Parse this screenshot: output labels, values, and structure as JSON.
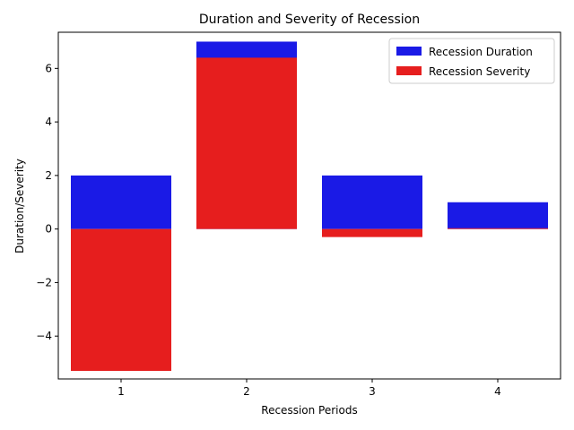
{
  "chart_data": {
    "type": "bar",
    "title": "Duration and Severity of Recession",
    "xlabel": "Recession Periods",
    "ylabel": "Duration/Severity",
    "categories": [
      "1",
      "2",
      "3",
      "4"
    ],
    "series": [
      {
        "name": "Recession Duration",
        "values": [
          2,
          7,
          2,
          1
        ],
        "color": "#1a1ae6"
      },
      {
        "name": "Recession Severity",
        "values": [
          -5.3,
          6.4,
          -0.3,
          0.03
        ],
        "color": "#e61e1e"
      }
    ],
    "ylim": [
      -5.6,
      7.35
    ],
    "yticks": [
      -4,
      -2,
      0,
      2,
      4,
      6
    ],
    "legend": "top-right"
  }
}
